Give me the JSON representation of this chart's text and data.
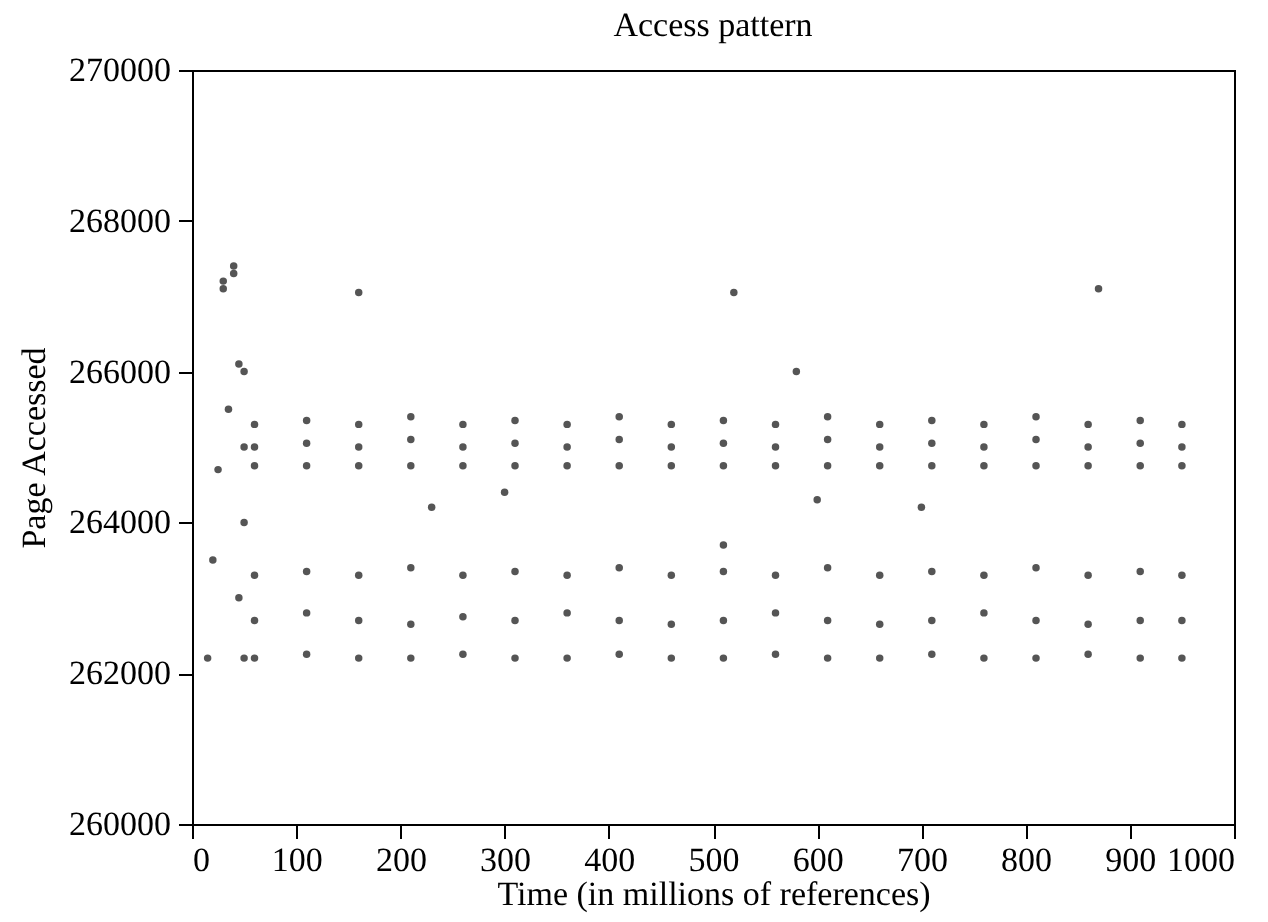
{
  "chart_data": {
    "type": "scatter",
    "title": "Access pattern",
    "xlabel": "Time (in millions of references)",
    "ylabel": "Page Accessed",
    "xlim": [
      0,
      1000
    ],
    "xticks": [
      0,
      100,
      200,
      300,
      400,
      500,
      600,
      700,
      800,
      900,
      1000
    ],
    "ylim": [
      260000,
      270000
    ],
    "yticks": [
      260000,
      262000,
      264000,
      266000,
      268000,
      270000
    ],
    "grid": false,
    "legend": false,
    "marker": "circle",
    "series": [
      {
        "color": "#555555",
        "x": [
          15,
          20,
          25,
          30,
          35,
          40,
          45,
          45,
          50,
          50,
          50,
          50,
          60,
          60,
          60,
          60,
          60,
          60,
          110,
          110,
          110,
          110,
          110,
          110,
          160,
          160,
          160,
          160,
          160,
          160,
          210,
          210,
          210,
          210,
          210,
          210,
          260,
          260,
          260,
          260,
          260,
          260,
          310,
          310,
          310,
          310,
          310,
          310,
          360,
          360,
          360,
          360,
          360,
          360,
          410,
          410,
          410,
          410,
          410,
          410,
          460,
          460,
          460,
          460,
          460,
          460,
          510,
          510,
          510,
          510,
          510,
          510,
          560,
          560,
          560,
          560,
          560,
          560,
          610,
          610,
          610,
          610,
          610,
          610,
          660,
          660,
          660,
          660,
          660,
          660,
          710,
          710,
          710,
          710,
          710,
          710,
          760,
          760,
          760,
          760,
          760,
          760,
          810,
          810,
          810,
          810,
          810,
          810,
          860,
          860,
          860,
          860,
          860,
          860,
          910,
          910,
          910,
          910,
          910,
          910,
          950,
          950,
          950,
          950,
          950,
          950,
          30,
          40,
          160,
          520,
          870,
          230,
          510,
          600,
          580,
          300,
          700
        ],
        "values": [
          262200,
          263500,
          264700,
          267200,
          265500,
          267400,
          266100,
          263000,
          262200,
          264000,
          265000,
          266000,
          264750,
          265000,
          265300,
          262200,
          262700,
          263300,
          264750,
          265050,
          265350,
          262250,
          262800,
          263350,
          264750,
          265000,
          265300,
          262200,
          262700,
          263300,
          264750,
          265100,
          265400,
          262200,
          262650,
          263400,
          264750,
          265000,
          265300,
          262250,
          262750,
          263300,
          264750,
          265050,
          265350,
          262200,
          262700,
          263350,
          264750,
          265000,
          265300,
          262200,
          262800,
          263300,
          264750,
          265100,
          265400,
          262250,
          262700,
          263400,
          264750,
          265000,
          265300,
          262200,
          262650,
          263300,
          264750,
          265050,
          265350,
          262200,
          262700,
          263350,
          264750,
          265000,
          265300,
          262250,
          262800,
          263300,
          264750,
          265100,
          265400,
          262200,
          262700,
          263400,
          264750,
          265000,
          265300,
          262200,
          262650,
          263300,
          264750,
          265050,
          265350,
          262250,
          262700,
          263350,
          264750,
          265000,
          265300,
          262200,
          262800,
          263300,
          264750,
          265100,
          265400,
          262200,
          262700,
          263400,
          264750,
          265000,
          265300,
          262250,
          262650,
          263300,
          264750,
          265050,
          265350,
          262200,
          262700,
          263350,
          264750,
          265000,
          265300,
          262200,
          262700,
          263300,
          267100,
          267300,
          267050,
          267050,
          267100,
          264200,
          263700,
          264300,
          266000,
          264400,
          264200
        ]
      }
    ]
  }
}
